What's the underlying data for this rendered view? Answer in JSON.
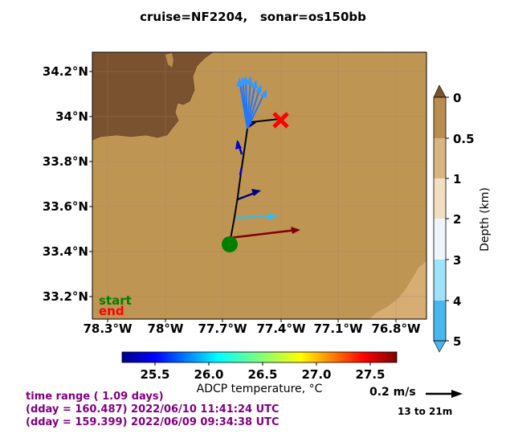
{
  "title": "cruise=NF2204,   sonar=os150bb",
  "map": {
    "lon_ticks": [
      "78.3°W",
      "78°W",
      "77.7°W",
      "77.4°W",
      "77.1°W",
      "76.8°W"
    ],
    "lat_ticks": [
      "34.2°N",
      "34°N",
      "33.8°N",
      "33.6°N",
      "33.4°N",
      "33.2°N"
    ],
    "land_color": "#7a5230",
    "shelf_color": "#b98d4d",
    "deep_color": "#bf9554",
    "start_label": "start",
    "end_label": "end",
    "start_color": "#008000",
    "end_color": "#ff0000"
  },
  "depth_colorbar": {
    "title": "Depth (km)",
    "ticks": [
      "0",
      "0.5",
      "1",
      "2",
      "3",
      "4",
      "5"
    ]
  },
  "temp_colorbar": {
    "label": "ADCP temperature, °C",
    "ticks": [
      "25.5",
      "26.0",
      "26.5",
      "27.0",
      "27.5"
    ]
  },
  "time_info": {
    "line1": "time range ( 1.09 days)",
    "line2": "(dday = 160.487) 2022/06/10 11:41:24 UTC",
    "line3": "(dday = 159.399) 2022/06/09 09:34:38 UTC"
  },
  "scale": {
    "label": "0.2 m/s",
    "depth_range": "13 to 21m"
  }
}
